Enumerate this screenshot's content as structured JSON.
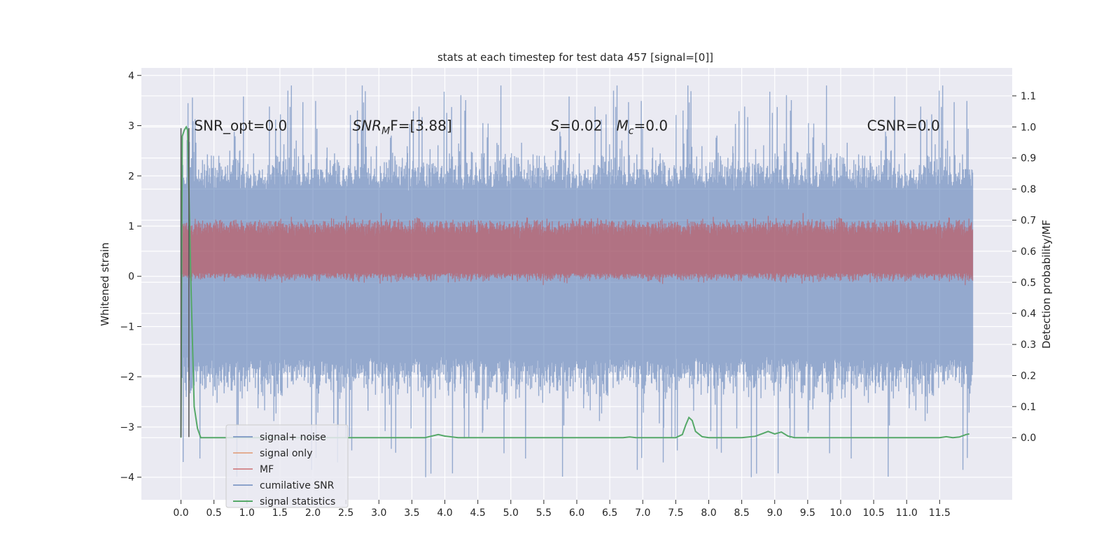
{
  "chart_data": {
    "type": "line",
    "title": "stats at each timestep for test data 457 [signal=[0]]",
    "xlabel": "",
    "ylabel": "Whitened strain",
    "ylabel_right": "Detection probability/MF",
    "xlim": [
      -0.6,
      12.6
    ],
    "ylim": [
      -4.45,
      4.15
    ],
    "ylim_right": [
      -0.2,
      1.19
    ],
    "x_ticks": [
      "0.0",
      "0.5",
      "1.0",
      "1.5",
      "2.0",
      "2.5",
      "3.0",
      "3.5",
      "4.0",
      "4.5",
      "5.0",
      "5.5",
      "6.0",
      "6.5",
      "7.0",
      "7.5",
      "8.0",
      "8.5",
      "9.0",
      "9.5",
      "10.0",
      "10.5",
      "11.0",
      "11.5"
    ],
    "y_ticks": [
      "−4",
      "−3",
      "−2",
      "−1",
      "0",
      "1",
      "2",
      "3",
      "4"
    ],
    "y_ticks_right": [
      "0.0",
      "0.1",
      "0.2",
      "0.3",
      "0.4",
      "0.5",
      "0.6",
      "0.7",
      "0.8",
      "0.9",
      "1.0",
      "1.1"
    ],
    "grid": true,
    "legend_position": "lower-left",
    "annotations": [
      {
        "id": "snr-opt",
        "text": "SNR_opt=0.0",
        "x": 0.2,
        "y": 3.0
      },
      {
        "id": "snr-mf",
        "text": "SNR",
        "sub": "M",
        "suffix": "F=[3.88]",
        "x": 2.6,
        "y": 3.0
      },
      {
        "id": "s-stat",
        "text": "S",
        "suffix": "=0.02",
        "x": 5.6,
        "y": 3.0
      },
      {
        "id": "mc",
        "text": "M",
        "sub": "c",
        "suffix": "=0.0",
        "x": 6.6,
        "y": 3.0
      },
      {
        "id": "csnr",
        "text": "CSNR=0.0",
        "x": 10.4,
        "y": 3.0
      }
    ],
    "vertical_lines": [
      {
        "x": 0.0,
        "y0": -3.2,
        "y1": 2.95
      },
      {
        "x": 0.12,
        "y0": -3.2,
        "y1": 2.95
      }
    ],
    "series": [
      {
        "name": "signal+ noise",
        "color": "#4c72b0",
        "axis": "left",
        "kind": "noise",
        "x_range": [
          0.0,
          12.0
        ],
        "mean": -0.1,
        "band_low": -1.6,
        "band_high": 1.7,
        "peak_max": 3.8,
        "peak_min": -4.1
      },
      {
        "name": "signal only",
        "color": "#dd8452",
        "axis": "left",
        "kind": "flat",
        "x_range": [
          0.0,
          12.0
        ],
        "value": 0.0
      },
      {
        "name": "MF",
        "color": "#c44e52",
        "axis": "right",
        "kind": "mf",
        "x_range": [
          0.0,
          12.0
        ],
        "band_low": 0.53,
        "band_high": 0.68,
        "peak_max": 0.67
      },
      {
        "name": "cumilative SNR",
        "color": "#4c72b0",
        "axis": "left",
        "kind": "flat",
        "x_range": [
          0.0,
          12.0
        ],
        "value": 0.0
      },
      {
        "name": "signal statistics",
        "color": "#55a868",
        "axis": "right",
        "kind": "line",
        "x": [
          0.0,
          0.02,
          0.05,
          0.08,
          0.1,
          0.15,
          0.2,
          0.25,
          0.3,
          0.4,
          0.6,
          1.0,
          2.0,
          3.0,
          3.7,
          3.9,
          4.0,
          4.2,
          5.0,
          6.0,
          6.7,
          6.8,
          6.9,
          7.0,
          7.5,
          7.6,
          7.65,
          7.7,
          7.75,
          7.8,
          7.9,
          8.0,
          8.5,
          8.7,
          8.8,
          8.9,
          9.0,
          9.1,
          9.2,
          9.3,
          9.5,
          10.0,
          11.0,
          11.3,
          11.5,
          11.6,
          11.7,
          11.8,
          11.9,
          11.95
        ],
        "y": [
          0.0,
          0.97,
          0.99,
          1.0,
          0.99,
          0.5,
          0.1,
          0.03,
          0.0,
          0.0,
          0.0,
          0.0,
          0.0,
          0.0,
          0.0,
          0.01,
          0.005,
          0.0,
          0.0,
          0.0,
          0.0,
          0.002,
          0.0,
          0.0,
          0.0,
          0.01,
          0.04,
          0.065,
          0.055,
          0.02,
          0.003,
          0.0,
          0.0,
          0.004,
          0.012,
          0.02,
          0.012,
          0.018,
          0.005,
          0.0,
          0.0,
          0.0,
          0.0,
          0.0,
          0.0,
          0.003,
          0.0,
          0.002,
          0.01,
          0.012
        ]
      }
    ]
  }
}
